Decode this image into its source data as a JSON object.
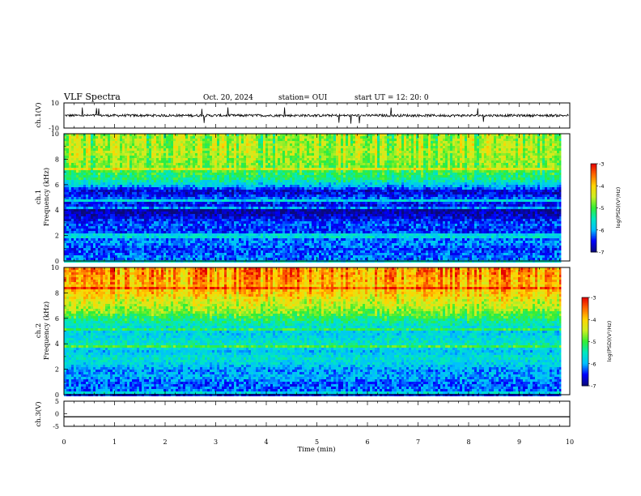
{
  "header": {
    "title": "VLF Spectra",
    "date": "Oct. 20, 2024",
    "station": "station= OUI",
    "start": "start  UT  =   12: 20: 0"
  },
  "colors": {
    "spectrum": [
      "#0a0a78",
      "#0000ff",
      "#00bfff",
      "#00e8c0",
      "#33ee33",
      "#ccee22",
      "#ffd400",
      "#ff6a00",
      "#e60000"
    ],
    "trace": "#000000"
  },
  "chart_data": [
    {
      "type": "line",
      "panel": "ch1-waveform",
      "ylabel": "ch.1(V)",
      "ylim": [
        -10,
        10
      ],
      "ytick_labels": [
        "10",
        "-10"
      ],
      "xlim": [
        0,
        10
      ],
      "series": [
        {
          "values_mean": 0,
          "approx_amplitude": 1
        }
      ]
    },
    {
      "type": "heatmap",
      "panel": "ch1-spectrogram",
      "ylabel_top": "ch.1",
      "ylabel": "Frequency (kHz)",
      "ylim": [
        0,
        10
      ],
      "ytick_labels": [
        "0",
        "2",
        "4",
        "6",
        "8",
        "10"
      ],
      "xlim": [
        0,
        9.83
      ],
      "colorbar": {
        "label": "log(PSD)(V²/Hz)",
        "range": [
          -7,
          -3
        ],
        "tick_labels": [
          "-3",
          "-4",
          "-5",
          "-6",
          "-7"
        ]
      },
      "freq_profile_khz": [
        0,
        0.5,
        1,
        1.5,
        2,
        2.5,
        3,
        3.5,
        4,
        4.5,
        5,
        5.5,
        6,
        6.5,
        7,
        7.5,
        8,
        8.5,
        9,
        9.5,
        10
      ],
      "log_psd_profile": [
        -6.3,
        -6.2,
        -6.4,
        -6.1,
        -6.3,
        -6.4,
        -6.3,
        -6.6,
        -6.9,
        -6.5,
        -6.3,
        -6.7,
        -5.9,
        -5.3,
        -5.1,
        -4.8,
        -4.7,
        -4.6,
        -4.6,
        -4.7,
        -4.7
      ]
    },
    {
      "type": "heatmap",
      "panel": "ch2-spectrogram",
      "ylabel_top": "ch.2",
      "ylabel": "Frequency (kHz)",
      "ylim": [
        0,
        10
      ],
      "ytick_labels": [
        "0",
        "2",
        "4",
        "6",
        "8",
        "10"
      ],
      "xlim": [
        0,
        9.83
      ],
      "colorbar": {
        "label": "log(PSD)(V²/Hz)",
        "range": [
          -7,
          -3
        ],
        "tick_labels": [
          "-3",
          "-4",
          "-5",
          "-6",
          "-7"
        ]
      },
      "freq_profile_khz": [
        0,
        0.5,
        1,
        1.5,
        2,
        2.5,
        3,
        3.5,
        4,
        4.5,
        5,
        5.5,
        6,
        6.5,
        7,
        7.5,
        8,
        8.5,
        9,
        9.5,
        10
      ],
      "log_psd_profile": [
        -6.5,
        -6.2,
        -6.3,
        -6.0,
        -6.1,
        -5.8,
        -5.6,
        -5.9,
        -5.5,
        -5.7,
        -5.8,
        -5.6,
        -5.2,
        -4.8,
        -4.5,
        -4.3,
        -4.0,
        -3.9,
        -3.8,
        -3.7,
        -3.7
      ]
    },
    {
      "type": "line",
      "panel": "ch3-waveform",
      "ylabel": "ch.3(V)",
      "ylim": [
        -5,
        5
      ],
      "ytick_labels": [
        "5",
        "0",
        "-5"
      ],
      "xlim": [
        0,
        10
      ],
      "series": [
        {
          "constant_value": -1.2
        }
      ]
    }
  ],
  "xaxis": {
    "label": "Time  (min)",
    "range": [
      0,
      10
    ],
    "tick_labels": [
      "0",
      "1",
      "2",
      "3",
      "4",
      "5",
      "6",
      "7",
      "8",
      "9",
      "10"
    ]
  }
}
